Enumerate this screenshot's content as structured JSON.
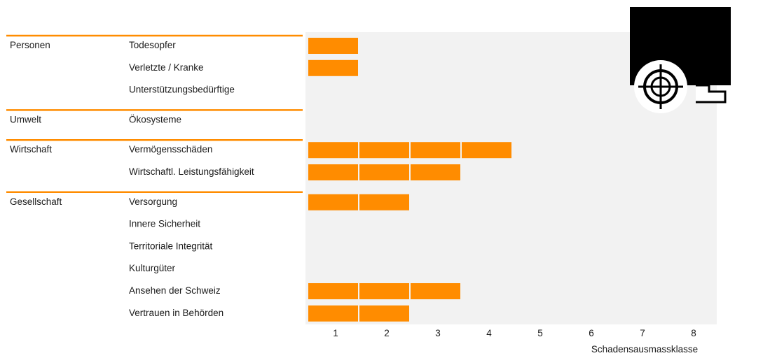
{
  "chart_data": {
    "type": "bar",
    "xlabel": "Schadensausmassklasse",
    "xticks": [
      "1",
      "2",
      "3",
      "4",
      "5",
      "6",
      "7",
      "8"
    ],
    "xlim": [
      0,
      8
    ],
    "groups": [
      {
        "name": "Personen",
        "rows": [
          {
            "label": "Todesopfer",
            "value": 1
          },
          {
            "label": "Verletzte / Kranke",
            "value": 1
          },
          {
            "label": "Unterstützungsbedürftige",
            "value": 0
          }
        ]
      },
      {
        "name": "Umwelt",
        "rows": [
          {
            "label": "Ökosysteme",
            "value": 0
          }
        ]
      },
      {
        "name": "Wirtschaft",
        "rows": [
          {
            "label": "Vermögensschäden",
            "value": 4
          },
          {
            "label": "Wirtschaftl. Leistungsfähigkeit",
            "value": 3
          }
        ]
      },
      {
        "name": "Gesellschaft",
        "rows": [
          {
            "label": "Versorgung",
            "value": 2
          },
          {
            "label": "Innere Sicherheit",
            "value": 0
          },
          {
            "label": "Territoriale Integrität",
            "value": 0
          },
          {
            "label": "Kulturgüter",
            "value": 0
          },
          {
            "label": "Ansehen der Schweiz",
            "value": 3
          },
          {
            "label": "Vertrauen in Behörden",
            "value": 2
          }
        ]
      }
    ],
    "colors": {
      "bar": "#ff8c00",
      "separator": "#ff8c00",
      "plot_bg": "#f2f2f2"
    }
  },
  "icon": {
    "name": "crosshair-target-icon"
  }
}
